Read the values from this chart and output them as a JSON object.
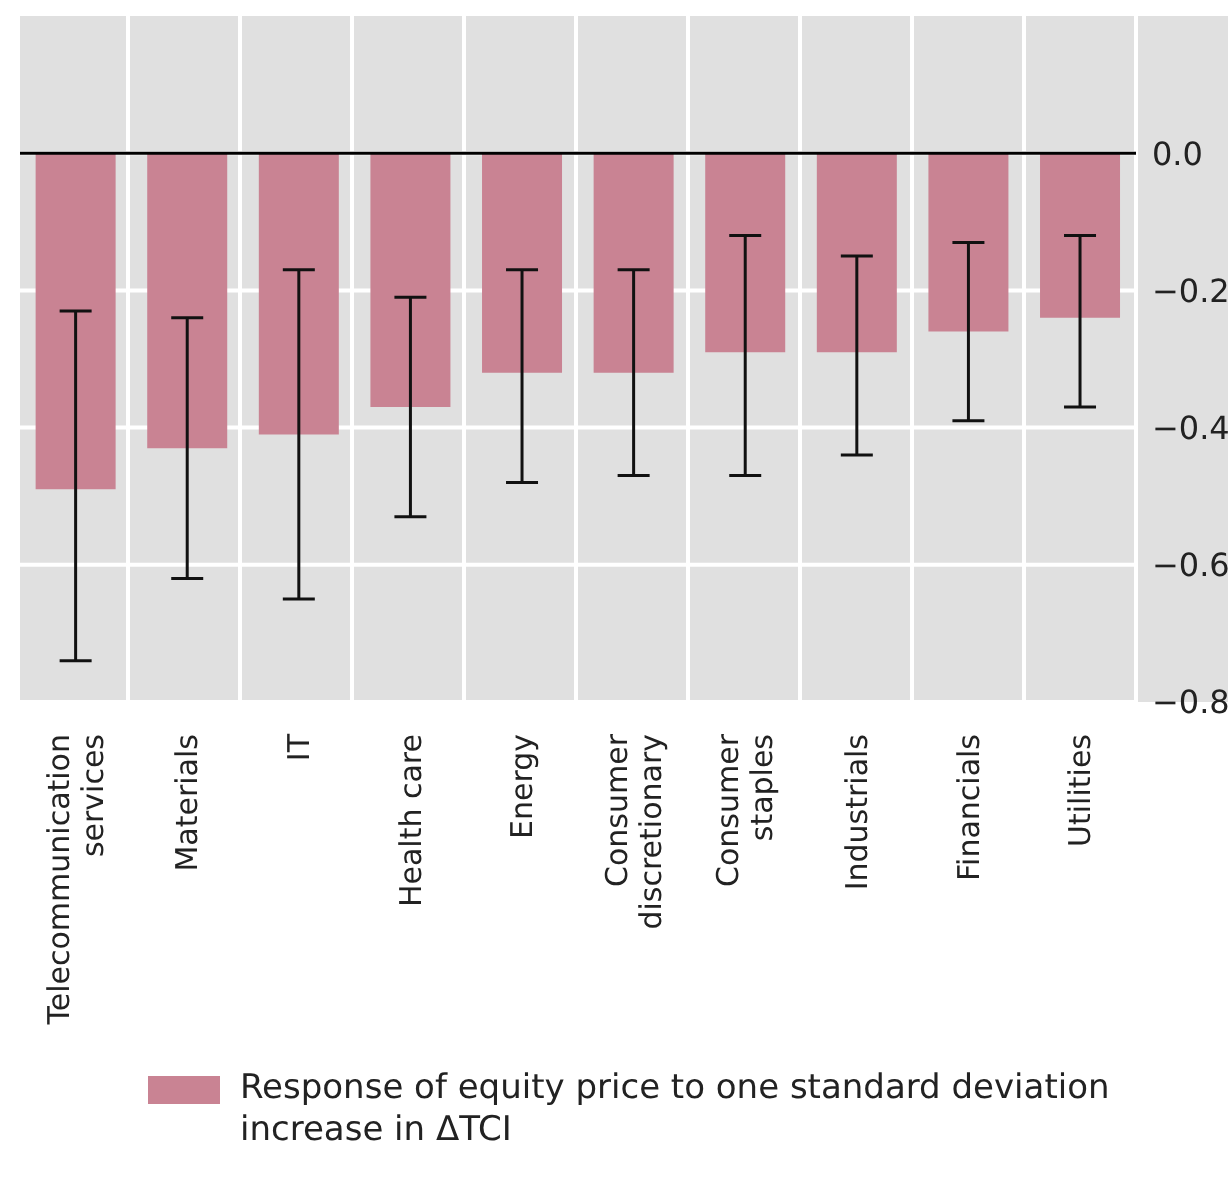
{
  "chart_data": {
    "type": "bar",
    "categories": [
      "Telecommunication services",
      "Materials",
      "IT",
      "Health care",
      "Energy",
      "Consumer discretionary",
      "Consumer staples",
      "Industrials",
      "Financials",
      "Utilities"
    ],
    "series": [
      {
        "name": "Response of equity price to one standard deviation increase in ΔTCI",
        "color": "#c98393",
        "values": [
          -0.49,
          -0.43,
          -0.41,
          -0.37,
          -0.32,
          -0.32,
          -0.29,
          -0.29,
          -0.26,
          -0.24
        ],
        "errors": [
          [
            -0.74,
            -0.23
          ],
          [
            -0.62,
            -0.24
          ],
          [
            -0.65,
            -0.17
          ],
          [
            -0.53,
            -0.21
          ],
          [
            -0.48,
            -0.17
          ],
          [
            -0.47,
            -0.17
          ],
          [
            -0.47,
            -0.12
          ],
          [
            -0.44,
            -0.15
          ],
          [
            -0.39,
            -0.13
          ],
          [
            -0.37,
            -0.12
          ]
        ]
      }
    ],
    "ylim": [
      -0.8,
      0.2
    ],
    "yticks": [
      {
        "value": 0,
        "label": "0.0"
      },
      {
        "value": -0.2,
        "label": "−0.2"
      },
      {
        "value": -0.4,
        "label": "−0.4"
      },
      {
        "value": -0.6,
        "label": "−0.6"
      },
      {
        "value": -0.8,
        "label": "−0.8"
      }
    ],
    "ref_lines": [
      {
        "axis": "y",
        "value": 0,
        "color": "#000000"
      }
    ],
    "grid": true,
    "legend": "bottom"
  }
}
